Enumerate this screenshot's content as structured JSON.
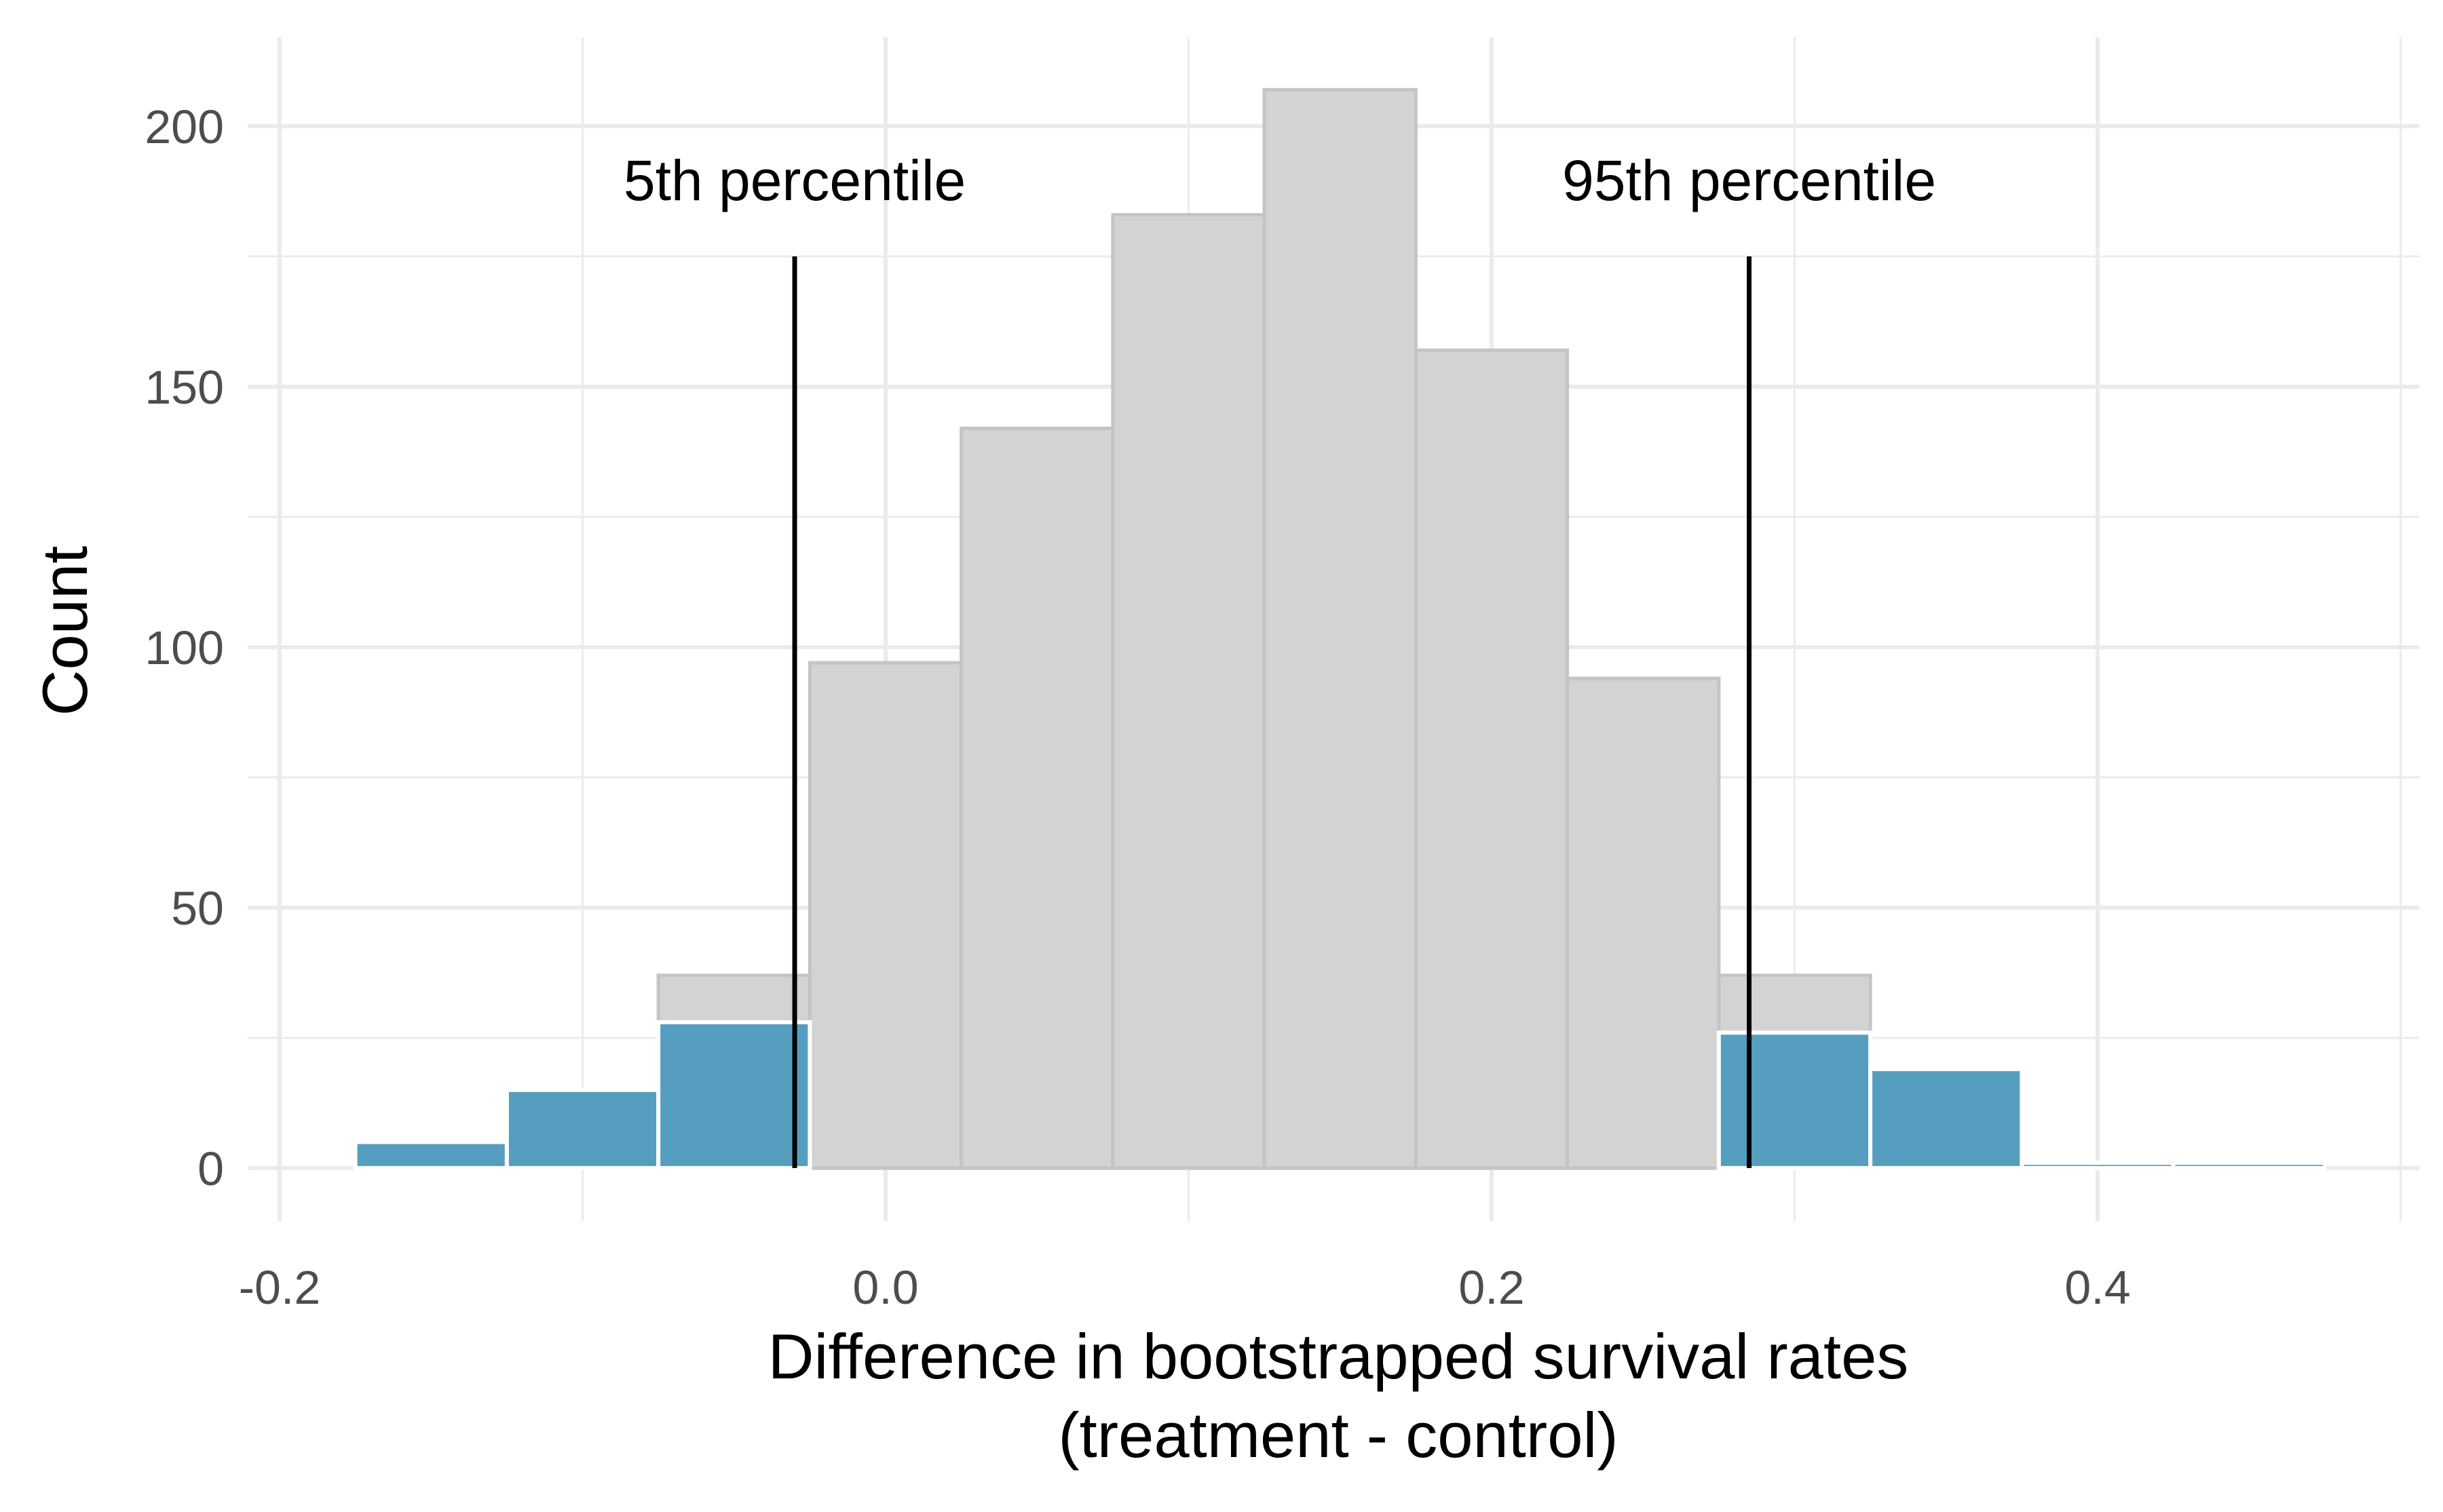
{
  "chart_data": {
    "type": "bar",
    "xlabel_line1": "Difference in bootstrapped survival rates",
    "xlabel_line2": "(treatment - control)",
    "ylabel": "Count",
    "xlim": [
      -0.2,
      0.5
    ],
    "ylim": [
      0,
      210
    ],
    "x_ticks": [
      -0.2,
      0.0,
      0.2,
      0.4
    ],
    "x_tick_labels": [
      "-0.2",
      "0.0",
      "0.2",
      "0.4"
    ],
    "y_ticks": [
      0,
      50,
      100,
      150,
      200
    ],
    "y_tick_labels": [
      "0",
      "50",
      "100",
      "150",
      "200"
    ],
    "grid": true,
    "bin_width": 0.05,
    "series": [
      {
        "role": "full distribution (gray)",
        "color": "#d3d3d3",
        "bins": [
          {
            "x0": -0.075,
            "x1": -0.025,
            "count": 37
          },
          {
            "x0": -0.025,
            "x1": 0.025,
            "count": 97
          },
          {
            "x0": 0.025,
            "x1": 0.075,
            "count": 142
          },
          {
            "x0": 0.075,
            "x1": 0.125,
            "count": 183
          },
          {
            "x0": 0.125,
            "x1": 0.175,
            "count": 207
          },
          {
            "x0": 0.175,
            "x1": 0.225,
            "count": 157
          },
          {
            "x0": 0.225,
            "x1": 0.275,
            "count": 94
          },
          {
            "x0": 0.275,
            "x1": 0.325,
            "count": 37
          }
        ]
      },
      {
        "role": "tails (blue)",
        "color": "#569ebf",
        "bins": [
          {
            "x0": -0.175,
            "x1": -0.125,
            "count": 5
          },
          {
            "x0": -0.125,
            "x1": -0.075,
            "count": 15
          },
          {
            "x0": -0.075,
            "x1": -0.025,
            "count": 28
          },
          {
            "x0": 0.275,
            "x1": 0.325,
            "count": 26
          },
          {
            "x0": 0.325,
            "x1": 0.375,
            "count": 19
          },
          {
            "x0": 0.375,
            "x1": 0.425,
            "count": 1
          },
          {
            "x0": 0.425,
            "x1": 0.475,
            "count": 1
          }
        ]
      }
    ],
    "percentile_lines": [
      {
        "label": "5th percentile",
        "x": -0.03,
        "top": 175
      },
      {
        "label": "95th percentile",
        "x": 0.285,
        "top": 175
      }
    ]
  }
}
